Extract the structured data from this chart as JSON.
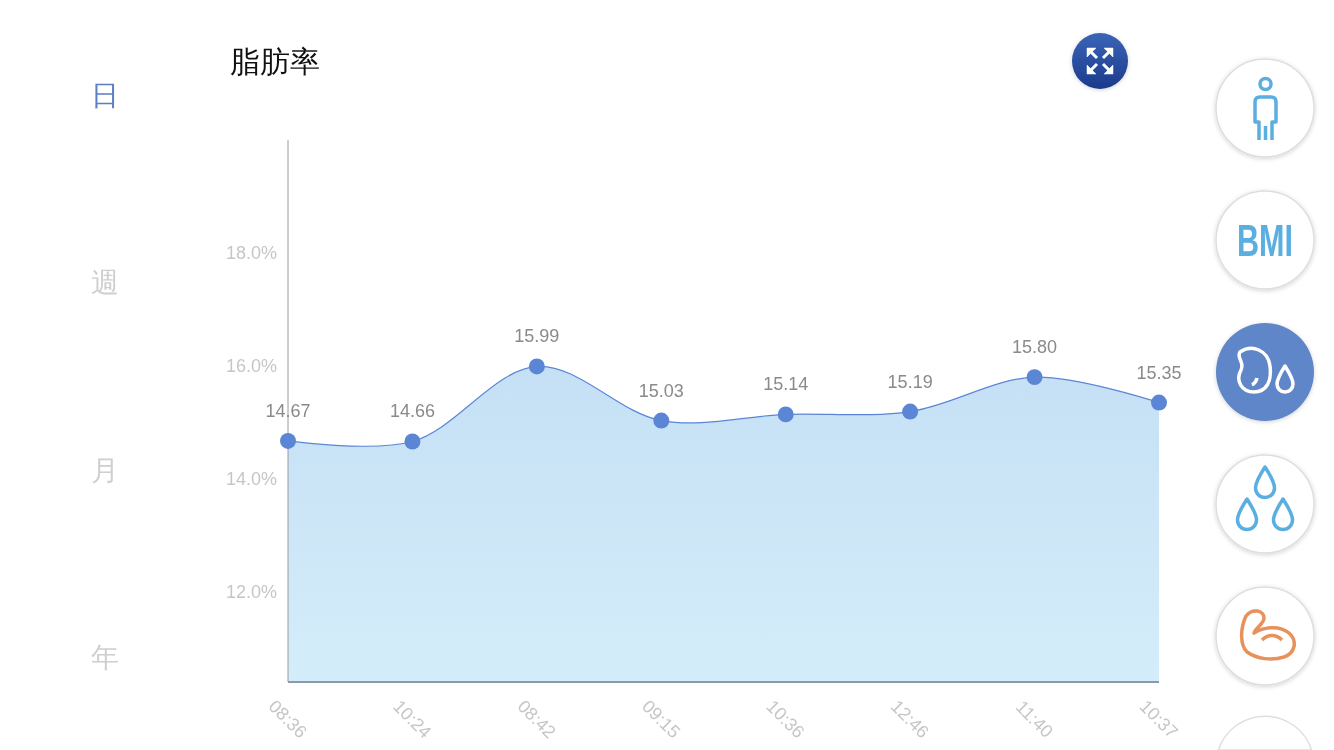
{
  "chart_data": {
    "type": "area",
    "title": "脂肪率",
    "categories": [
      "08:36",
      "10:24",
      "08:42",
      "09:15",
      "10:36",
      "12:46",
      "11:40",
      "10:37"
    ],
    "values": [
      14.67,
      14.66,
      15.99,
      15.03,
      15.14,
      15.19,
      15.8,
      15.35
    ],
    "value_labels": [
      "14.67",
      "14.66",
      "15.99",
      "15.03",
      "15.14",
      "15.19",
      "15.80",
      "15.35"
    ],
    "color": "#5b86d6",
    "ylim": [
      10.4,
      20
    ],
    "yticks": [
      {
        "value": 12,
        "label": "12.0%"
      },
      {
        "value": 14,
        "label": "14.0%"
      },
      {
        "value": 16,
        "label": "16.0%"
      },
      {
        "value": 18,
        "label": "18.0%"
      }
    ],
    "marker": "circle",
    "annotations": [
      "日",
      "週",
      "月",
      "年",
      "BMI"
    ]
  }
}
